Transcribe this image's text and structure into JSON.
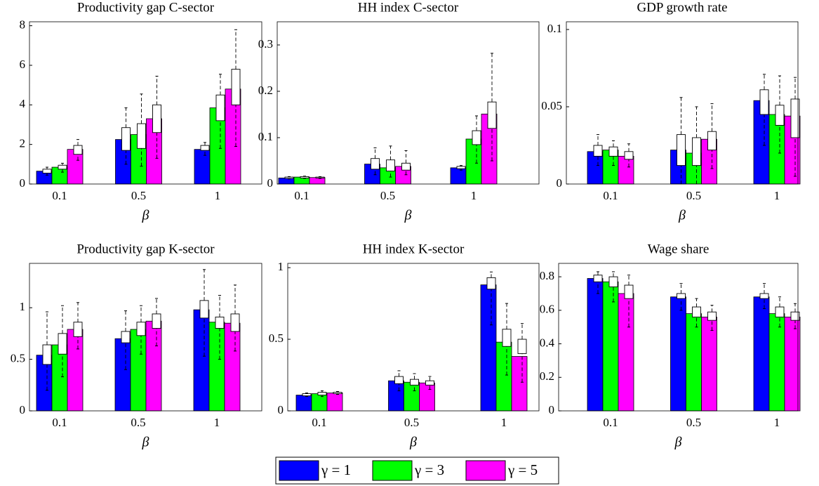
{
  "chart_data": [
    {
      "type": "bar",
      "title": "Productivity gap C-sector",
      "x_label": "β",
      "categories": [
        "0.1",
        "0.5",
        "1"
      ],
      "ylim": [
        0,
        8.2
      ],
      "yticks": [
        0,
        2,
        4,
        6,
        8
      ],
      "series": [
        {
          "name": "γ = 1",
          "color": "#0000ff",
          "values": [
            0.65,
            2.25,
            1.75
          ],
          "whisker_low": [
            0.45,
            1.0,
            1.45
          ],
          "q1": [
            0.55,
            1.7,
            1.7
          ],
          "q3": [
            0.75,
            2.85,
            1.95
          ],
          "whisker_high": [
            0.85,
            3.85,
            2.1
          ]
        },
        {
          "name": "γ = 3",
          "color": "#00ff00",
          "values": [
            0.85,
            2.5,
            3.85
          ],
          "whisker_low": [
            0.6,
            0.9,
            1.8
          ],
          "q1": [
            0.75,
            1.8,
            3.2
          ],
          "q3": [
            0.95,
            3.05,
            4.5
          ],
          "whisker_high": [
            1.05,
            4.55,
            5.55
          ]
        },
        {
          "name": "γ = 5",
          "color": "#ff00ff",
          "values": [
            1.75,
            3.3,
            4.8
          ],
          "whisker_low": [
            1.2,
            1.3,
            1.9
          ],
          "q1": [
            1.5,
            2.6,
            4.0
          ],
          "q3": [
            1.95,
            4.0,
            5.8
          ],
          "whisker_high": [
            2.25,
            5.45,
            7.8
          ]
        }
      ]
    },
    {
      "type": "bar",
      "title": "HH index C-sector",
      "x_label": "β",
      "categories": [
        "0.1",
        "0.5",
        "1"
      ],
      "ylim": [
        0,
        0.35
      ],
      "yticks": [
        0,
        0.1,
        0.2,
        0.3
      ],
      "series": [
        {
          "color": "#0000ff",
          "values": [
            0.013,
            0.043,
            0.035
          ],
          "whisker_low": [
            0.011,
            0.02,
            0.03
          ],
          "q1": [
            0.012,
            0.032,
            0.033
          ],
          "q3": [
            0.015,
            0.055,
            0.038
          ],
          "whisker_high": [
            0.016,
            0.078,
            0.04
          ]
        },
        {
          "color": "#00ff00",
          "values": [
            0.015,
            0.035,
            0.097
          ],
          "whisker_low": [
            0.012,
            0.015,
            0.045
          ],
          "q1": [
            0.013,
            0.028,
            0.085
          ],
          "q3": [
            0.016,
            0.052,
            0.115
          ],
          "whisker_high": [
            0.017,
            0.082,
            0.147
          ]
        },
        {
          "color": "#ff00ff",
          "values": [
            0.014,
            0.038,
            0.151
          ],
          "whisker_low": [
            0.012,
            0.02,
            0.05
          ],
          "q1": [
            0.013,
            0.03,
            0.12
          ],
          "q3": [
            0.015,
            0.045,
            0.177
          ],
          "whisker_high": [
            0.016,
            0.072,
            0.282
          ]
        }
      ]
    },
    {
      "type": "bar",
      "title": "GDP growth rate",
      "x_label": "β",
      "categories": [
        "0.1",
        "0.5",
        "1"
      ],
      "ylim": [
        0,
        0.105
      ],
      "yticks": [
        0,
        0.05,
        0.1
      ],
      "series": [
        {
          "color": "#0000ff",
          "values": [
            0.021,
            0.022,
            0.054
          ],
          "whisker_low": [
            0.012,
            0.0,
            0.025
          ],
          "q1": [
            0.018,
            0.012,
            0.045
          ],
          "q3": [
            0.025,
            0.032,
            0.061
          ],
          "whisker_high": [
            0.032,
            0.056,
            0.071
          ]
        },
        {
          "color": "#00ff00",
          "values": [
            0.022,
            0.02,
            0.045
          ],
          "whisker_low": [
            0.012,
            0.0,
            0.02
          ],
          "q1": [
            0.018,
            0.012,
            0.038
          ],
          "q3": [
            0.024,
            0.03,
            0.051
          ],
          "whisker_high": [
            0.028,
            0.05,
            0.07
          ]
        },
        {
          "color": "#ff00ff",
          "values": [
            0.018,
            0.029,
            0.044
          ],
          "whisker_low": [
            0.011,
            0.01,
            0.005
          ],
          "q1": [
            0.016,
            0.022,
            0.03
          ],
          "q3": [
            0.021,
            0.034,
            0.055
          ],
          "whisker_high": [
            0.026,
            0.052,
            0.069
          ]
        }
      ]
    },
    {
      "type": "bar",
      "title": "Productivity gap K-sector",
      "x_label": "β",
      "categories": [
        "0.1",
        "0.5",
        "1"
      ],
      "ylim": [
        0,
        1.43
      ],
      "yticks": [
        0,
        0.5,
        1
      ],
      "series": [
        {
          "color": "#0000ff",
          "values": [
            0.54,
            0.7,
            0.98
          ],
          "whisker_low": [
            0.2,
            0.4,
            0.53
          ],
          "q1": [
            0.45,
            0.66,
            0.9
          ],
          "q3": [
            0.64,
            0.77,
            1.07
          ],
          "whisker_high": [
            0.96,
            0.97,
            1.37
          ]
        },
        {
          "color": "#00ff00",
          "values": [
            0.64,
            0.79,
            0.86
          ],
          "whisker_low": [
            0.33,
            0.55,
            0.5
          ],
          "q1": [
            0.55,
            0.73,
            0.8
          ],
          "q3": [
            0.75,
            0.86,
            0.91
          ],
          "whisker_high": [
            1.02,
            1.02,
            1.12
          ]
        },
        {
          "color": "#ff00ff",
          "values": [
            0.79,
            0.87,
            0.85
          ],
          "whisker_low": [
            0.6,
            0.63,
            0.58
          ],
          "q1": [
            0.72,
            0.8,
            0.77
          ],
          "q3": [
            0.86,
            0.94,
            0.94
          ],
          "whisker_high": [
            1.05,
            1.09,
            1.22
          ]
        }
      ]
    },
    {
      "type": "bar",
      "title": "HH index K-sector",
      "x_label": "β",
      "categories": [
        "0.1",
        "0.5",
        "1"
      ],
      "ylim": [
        0,
        1.03
      ],
      "yticks": [
        0,
        0.5,
        1
      ],
      "series": [
        {
          "color": "#0000ff",
          "values": [
            0.11,
            0.21,
            0.88
          ],
          "whisker_low": [
            0.1,
            0.14,
            0.6
          ],
          "q1": [
            0.105,
            0.19,
            0.85
          ],
          "q3": [
            0.12,
            0.24,
            0.93
          ],
          "whisker_high": [
            0.125,
            0.28,
            0.97
          ]
        },
        {
          "color": "#00ff00",
          "values": [
            0.12,
            0.2,
            0.48
          ],
          "whisker_low": [
            0.1,
            0.14,
            0.25
          ],
          "q1": [
            0.11,
            0.18,
            0.45
          ],
          "q3": [
            0.13,
            0.22,
            0.57
          ],
          "whisker_high": [
            0.14,
            0.26,
            0.75
          ]
        },
        {
          "color": "#ff00ff",
          "values": [
            0.125,
            0.195,
            0.38
          ],
          "whisker_low": [
            0.115,
            0.15,
            0.2
          ],
          "q1": [
            0.12,
            0.18,
            0.4
          ],
          "q3": [
            0.13,
            0.21,
            0.5
          ],
          "whisker_high": [
            0.135,
            0.24,
            0.61
          ]
        }
      ]
    },
    {
      "type": "bar",
      "title": "Wage share",
      "x_label": "β",
      "categories": [
        "0.1",
        "0.5",
        "1"
      ],
      "ylim": [
        0,
        0.88
      ],
      "yticks": [
        0,
        0.2,
        0.4,
        0.6,
        0.8
      ],
      "series": [
        {
          "color": "#0000ff",
          "values": [
            0.79,
            0.68,
            0.68
          ],
          "whisker_low": [
            0.7,
            0.6,
            0.61
          ],
          "q1": [
            0.77,
            0.67,
            0.67
          ],
          "q3": [
            0.81,
            0.7,
            0.7
          ],
          "whisker_high": [
            0.83,
            0.76,
            0.76
          ]
        },
        {
          "color": "#00ff00",
          "values": [
            0.77,
            0.58,
            0.58
          ],
          "whisker_low": [
            0.65,
            0.5,
            0.5
          ],
          "q1": [
            0.74,
            0.56,
            0.56
          ],
          "q3": [
            0.8,
            0.62,
            0.62
          ],
          "whisker_high": [
            0.83,
            0.67,
            0.68
          ]
        },
        {
          "color": "#ff00ff",
          "values": [
            0.7,
            0.56,
            0.56
          ],
          "whisker_low": [
            0.5,
            0.48,
            0.49
          ],
          "q1": [
            0.67,
            0.54,
            0.54
          ],
          "q3": [
            0.75,
            0.59,
            0.59
          ],
          "whisker_high": [
            0.81,
            0.63,
            0.64
          ]
        }
      ]
    }
  ]
}
